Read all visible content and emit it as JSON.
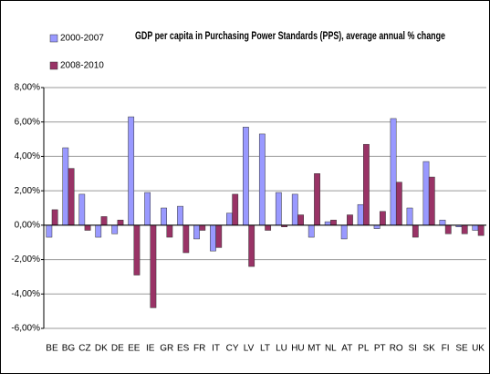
{
  "chart_data": {
    "type": "bar",
    "title": "GDP per capita in Purchasing Power Standards (PPS), average annual % change",
    "categories": [
      "BE",
      "BG",
      "CZ",
      "DK",
      "DE",
      "EE",
      "IE",
      "GR",
      "ES",
      "FR",
      "IT",
      "CY",
      "LV",
      "LT",
      "LU",
      "HU",
      "MT",
      "NL",
      "AT",
      "PL",
      "PT",
      "RO",
      "SI",
      "SK",
      "FI",
      "SE",
      "UK"
    ],
    "series": [
      {
        "name": "2000-2007",
        "color": "#9999ff",
        "values": [
          -0.7,
          4.5,
          1.8,
          -0.7,
          -0.5,
          6.3,
          1.9,
          1.0,
          1.1,
          -0.8,
          -1.5,
          0.7,
          5.7,
          5.3,
          1.9,
          1.8,
          -0.7,
          0.2,
          -0.8,
          1.2,
          -0.2,
          6.2,
          1.0,
          3.7,
          0.3,
          -0.1,
          -0.3
        ]
      },
      {
        "name": "2008-2010",
        "color": "#993366",
        "values": [
          0.9,
          3.3,
          -0.3,
          0.5,
          0.3,
          -2.9,
          -4.8,
          -0.7,
          -1.6,
          -0.3,
          -1.3,
          1.8,
          -2.4,
          -0.3,
          -0.1,
          0.6,
          3.0,
          0.3,
          0.6,
          4.7,
          0.8,
          2.5,
          -0.7,
          2.8,
          -0.5,
          -0.5,
          -0.6
        ]
      }
    ],
    "ylim": [
      -6,
      8
    ],
    "yticks": [
      {
        "value": -6,
        "label": "-6,00%"
      },
      {
        "value": -4,
        "label": "-4,00%"
      },
      {
        "value": -2,
        "label": "-2,00%"
      },
      {
        "value": 0,
        "label": "0,00%"
      },
      {
        "value": 2,
        "label": "2,00%"
      },
      {
        "value": 4,
        "label": "4,00%"
      },
      {
        "value": 6,
        "label": "6,00%"
      },
      {
        "value": 8,
        "label": "8,00%"
      }
    ],
    "grid": true,
    "legend": "top-left"
  }
}
